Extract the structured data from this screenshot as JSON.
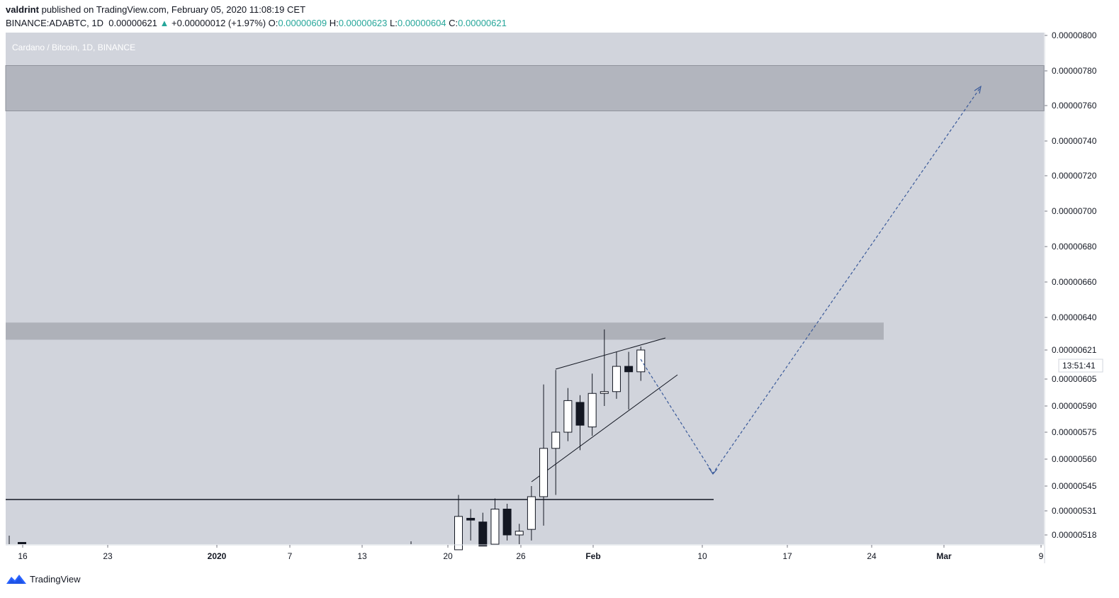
{
  "header": {
    "author": "valdrint",
    "published_text": "published on TradingView.com, February 05, 2020 11:08:19 CET",
    "symbol": "BINANCE:ADABTC, 1D",
    "last": "0.00000621",
    "change_arrow": "▲",
    "change": "+0.00000012 (+1.97%)",
    "o_label": "O:",
    "o_val": "0.00000609",
    "h_label": "H:",
    "h_val": "0.00000623",
    "l_label": "L:",
    "l_val": "0.00000604",
    "c_label": "C:",
    "c_val": "0.00000621"
  },
  "footer": {
    "brand": "TradingView",
    "logo_icon": "tradingview-logo-icon"
  },
  "chart_data": {
    "type": "candlestick",
    "title": "Cardano / Bitcoin, 1D, BINANCE",
    "x_tick_labels": [
      "16",
      "23",
      "2020",
      "7",
      "13",
      "20",
      "26",
      "Feb",
      "10",
      "17",
      "24",
      "Mar",
      "9"
    ],
    "y_tick_labels": [
      "0.00000800",
      "0.00000780",
      "0.00000760",
      "0.00000740",
      "0.00000720",
      "0.00000700",
      "0.00000680",
      "0.00000660",
      "0.00000640",
      "0.00000621",
      "0.00000605",
      "0.00000590",
      "0.00000575",
      "0.00000560",
      "0.00000545",
      "0.00000531",
      "0.00000518"
    ],
    "last_price_label": "0.00000621",
    "countdown_label": "13:51:41",
    "candles": [
      {
        "date": "2020-01-21",
        "o": 5.1e-06,
        "h": 5.4e-06,
        "l": 5.05e-06,
        "c": 5.28e-06
      },
      {
        "date": "2020-01-22",
        "o": 5.27e-06,
        "h": 5.32e-06,
        "l": 5.15e-06,
        "c": 5.26e-06
      },
      {
        "date": "2020-01-23",
        "o": 5.25e-06,
        "h": 5.3e-06,
        "l": 5.08e-06,
        "c": 5.12e-06
      },
      {
        "date": "2020-01-24",
        "o": 5.13e-06,
        "h": 5.38e-06,
        "l": 5.1e-06,
        "c": 5.32e-06
      },
      {
        "date": "2020-01-25",
        "o": 5.32e-06,
        "h": 5.35e-06,
        "l": 5.15e-06,
        "c": 5.18e-06
      },
      {
        "date": "2020-01-26",
        "o": 5.18e-06,
        "h": 5.24e-06,
        "l": 5.1e-06,
        "c": 5.2e-06
      },
      {
        "date": "2020-01-27",
        "o": 5.21e-06,
        "h": 5.45e-06,
        "l": 5.15e-06,
        "c": 5.39e-06
      },
      {
        "date": "2020-01-28",
        "o": 5.39e-06,
        "h": 6.02e-06,
        "l": 5.23e-06,
        "c": 5.66e-06
      },
      {
        "date": "2020-01-29",
        "o": 5.66e-06,
        "h": 6.1e-06,
        "l": 5.4e-06,
        "c": 5.75e-06
      },
      {
        "date": "2020-01-30",
        "o": 5.75e-06,
        "h": 6e-06,
        "l": 5.7e-06,
        "c": 5.93e-06
      },
      {
        "date": "2020-01-31",
        "o": 5.92e-06,
        "h": 5.96e-06,
        "l": 5.65e-06,
        "c": 5.79e-06
      },
      {
        "date": "2020-02-01",
        "o": 5.78e-06,
        "h": 6.08e-06,
        "l": 5.73e-06,
        "c": 5.97e-06
      },
      {
        "date": "2020-02-02",
        "o": 5.97e-06,
        "h": 6.33e-06,
        "l": 5.9e-06,
        "c": 5.98e-06
      },
      {
        "date": "2020-02-03",
        "o": 5.98e-06,
        "h": 6.2e-06,
        "l": 5.94e-06,
        "c": 6.12e-06
      },
      {
        "date": "2020-02-04",
        "o": 6.12e-06,
        "h": 6.2e-06,
        "l": 5.88e-06,
        "c": 6.09e-06
      },
      {
        "date": "2020-02-05",
        "o": 6.09e-06,
        "h": 6.23e-06,
        "l": 6.04e-06,
        "c": 6.21e-06
      }
    ],
    "zones": [
      {
        "name": "resistance-upper",
        "from": 7.57e-06,
        "to": 7.83e-06
      },
      {
        "name": "resistance-lower",
        "from": 6.27e-06,
        "to": 6.37e-06
      }
    ],
    "colors": {
      "background": "#ffffff",
      "plot_background": "#d1d4dc",
      "zone_upper": "#b2b5be",
      "zone_lower": "#aeb1b9",
      "candle_up": "#ffffff",
      "candle_down": "#131722",
      "candle_outline": "#131722",
      "projection": "#3a5a9a",
      "axis_text": "#131722",
      "up_color": "#26a69a"
    },
    "grid": false
  }
}
